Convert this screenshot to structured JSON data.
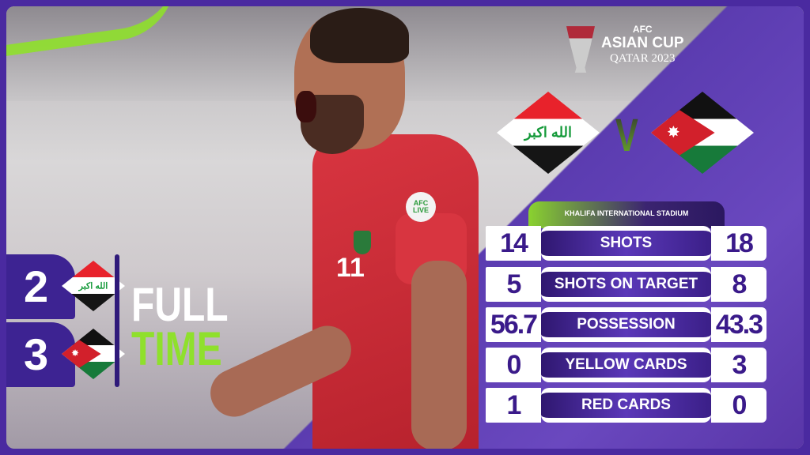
{
  "logo": {
    "line1": "AFC",
    "line2": "ASIAN CUP",
    "line3": "QATAR 2023"
  },
  "match": {
    "home": "Iraq",
    "away": "Jordan",
    "versus": "V",
    "venue": "KHALIFA INTERNATIONAL STADIUM"
  },
  "flags": {
    "iraq_text": "الله اكبر",
    "jordan_star": "✸"
  },
  "score": {
    "home": "2",
    "away": "3",
    "status_line1": "FULL",
    "status_line2": "TIME"
  },
  "stats": [
    {
      "label": "SHOTS",
      "home": "14",
      "away": "18"
    },
    {
      "label": "SHOTS ON TARGET",
      "home": "5",
      "away": "8"
    },
    {
      "label": "POSSESSION",
      "home": "56.7",
      "away": "43.3"
    },
    {
      "label": "YELLOW CARDS",
      "home": "0",
      "away": "3"
    },
    {
      "label": "RED CARDS",
      "home": "1",
      "away": "0"
    }
  ],
  "player": {
    "shirt_number": "11",
    "patch": "AFC LIVE"
  },
  "colors": {
    "purple": "#4a2aa0",
    "green": "#8fe02c",
    "white": "#ffffff"
  }
}
